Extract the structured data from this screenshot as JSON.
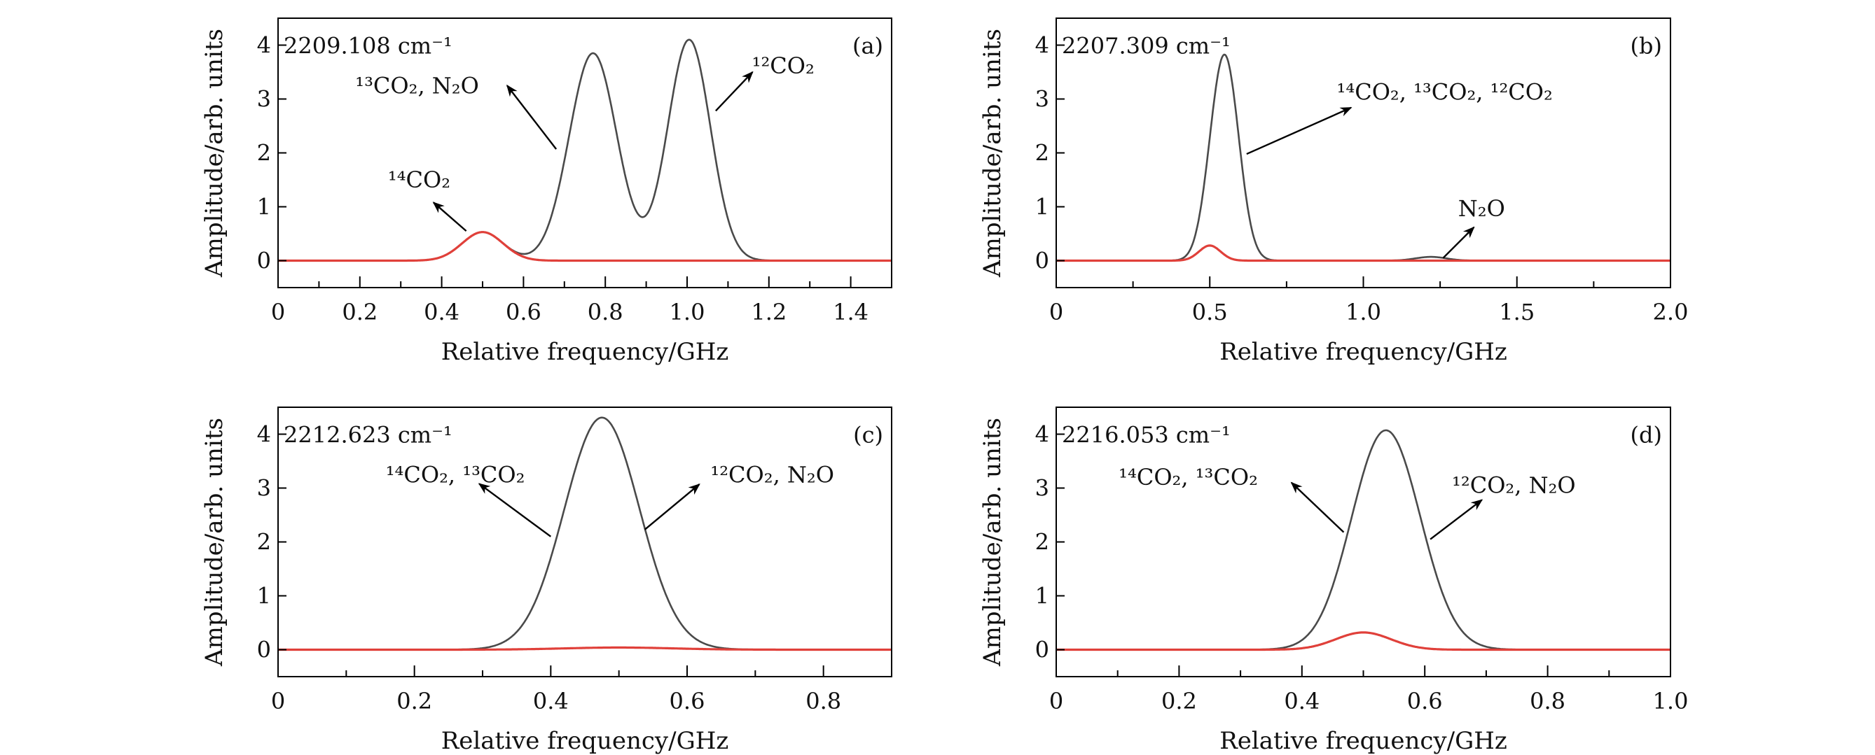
{
  "colors": {
    "total": "#4a4a4a",
    "c14": "#e0403a",
    "axis": "#000000",
    "arrow": "#000000"
  },
  "chart_data": [
    {
      "type": "line",
      "panel": "(a)",
      "wavenumber": "2209.108 cm⁻¹",
      "xlabel": "Relative frequency/GHz",
      "ylabel": "Amplitude/arb. units",
      "xlim": [
        0,
        1.5
      ],
      "ylim": [
        -0.5,
        4.5
      ],
      "xticks": [
        0,
        0.2,
        0.4,
        0.6,
        0.8,
        1.0,
        1.2,
        1.4
      ],
      "xtick_labels": [
        "0",
        "0.2",
        "0.4",
        "0.6",
        "0.8",
        "1.0",
        "1.2",
        "1.4"
      ],
      "xminor_step": 0.1,
      "yticks": [
        0,
        1,
        2,
        3,
        4
      ],
      "ytick_labels": [
        "0",
        "1",
        "2",
        "3",
        "4"
      ],
      "series": [
        {
          "name": "total",
          "color_key": "total",
          "gaussian_peaks": [
            [
              0.5,
              0.53,
              0.05
            ],
            [
              0.77,
              3.85,
              0.058
            ],
            [
              1.005,
              4.1,
              0.052
            ]
          ]
        },
        {
          "name": "14CO2",
          "color_key": "c14",
          "gaussian_peaks": [
            [
              0.5,
              0.53,
              0.05
            ]
          ]
        }
      ],
      "annotations": [
        {
          "text": "¹³CO₂, N₂O",
          "text_at": [
            0.34,
            3.25
          ],
          "arrow_from": [
            0.68,
            2.07
          ],
          "arrow_to": [
            0.56,
            3.25
          ]
        },
        {
          "text": "¹²CO₂",
          "text_at": [
            1.235,
            3.62
          ],
          "arrow_from": [
            1.07,
            2.78
          ],
          "arrow_to": [
            1.16,
            3.5
          ]
        },
        {
          "text": "¹⁴CO₂",
          "text_at": [
            0.345,
            1.5
          ],
          "arrow_from": [
            0.46,
            0.55
          ],
          "arrow_to": [
            0.38,
            1.08
          ]
        }
      ]
    },
    {
      "type": "line",
      "panel": "(b)",
      "wavenumber": "2207.309 cm⁻¹",
      "xlabel": "Relative frequency/GHz",
      "ylabel": "Amplitude/arb. units",
      "xlim": [
        0,
        2.0
      ],
      "ylim": [
        -0.5,
        4.5
      ],
      "xticks": [
        0,
        0.5,
        1.0,
        1.5,
        2.0
      ],
      "xtick_labels": [
        "0",
        "0.5",
        "1.0",
        "1.5",
        "2.0"
      ],
      "xminor_step": 0.25,
      "yticks": [
        0,
        1,
        2,
        3,
        4
      ],
      "ytick_labels": [
        "0",
        "1",
        "2",
        "3",
        "4"
      ],
      "series": [
        {
          "name": "total",
          "color_key": "total",
          "gaussian_peaks": [
            [
              0.5,
              0.28,
              0.035
            ],
            [
              0.55,
              3.72,
              0.045
            ],
            [
              1.22,
              0.07,
              0.05
            ]
          ]
        },
        {
          "name": "14CO2",
          "color_key": "c14",
          "gaussian_peaks": [
            [
              0.5,
              0.28,
              0.035
            ]
          ]
        }
      ],
      "annotations": [
        {
          "text": "¹⁴CO₂, ¹³CO₂, ¹²CO₂",
          "text_at": [
            1.265,
            3.13
          ],
          "arrow_from": [
            0.62,
            1.98
          ],
          "arrow_to": [
            0.96,
            2.84
          ]
        },
        {
          "text": "N₂O",
          "text_at": [
            1.385,
            0.97
          ],
          "arrow_from": [
            1.26,
            0.05
          ],
          "arrow_to": [
            1.36,
            0.62
          ]
        }
      ]
    },
    {
      "type": "line",
      "panel": "(c)",
      "wavenumber": "2212.623 cm⁻¹",
      "xlabel": "Relative frequency/GHz",
      "ylabel": "Amplitude/arb. units",
      "xlim": [
        0,
        0.9
      ],
      "ylim": [
        -0.5,
        4.5
      ],
      "xticks": [
        0,
        0.2,
        0.4,
        0.6,
        0.8
      ],
      "xtick_labels": [
        "0",
        "0.2",
        "0.4",
        "0.6",
        "0.8"
      ],
      "xminor_step": 0.1,
      "yticks": [
        0,
        1,
        2,
        3,
        4
      ],
      "ytick_labels": [
        "0",
        "1",
        "2",
        "3",
        "4"
      ],
      "series": [
        {
          "name": "total",
          "color_key": "total",
          "gaussian_peaks": [
            [
              0.475,
              4.27,
              0.055
            ],
            [
              0.5,
              0.04,
              0.08
            ]
          ]
        },
        {
          "name": "14CO2",
          "color_key": "c14",
          "gaussian_peaks": [
            [
              0.5,
              0.04,
              0.08
            ]
          ]
        }
      ],
      "annotations": [
        {
          "text": "¹⁴CO₂, ¹³CO₂",
          "text_at": [
            0.26,
            3.25
          ],
          "arrow_from": [
            0.4,
            2.1
          ],
          "arrow_to": [
            0.295,
            3.08
          ]
        },
        {
          "text": "¹²CO₂, N₂O",
          "text_at": [
            0.725,
            3.25
          ],
          "arrow_from": [
            0.538,
            2.23
          ],
          "arrow_to": [
            0.618,
            3.07
          ]
        }
      ]
    },
    {
      "type": "line",
      "panel": "(d)",
      "wavenumber": "2216.053 cm⁻¹",
      "xlabel": "Relative frequency/GHz",
      "ylabel": "Amplitude/arb. units",
      "xlim": [
        0,
        1.0
      ],
      "ylim": [
        -0.5,
        4.5
      ],
      "xticks": [
        0,
        0.2,
        0.4,
        0.6,
        0.8,
        1.0
      ],
      "xtick_labels": [
        "0",
        "0.2",
        "0.4",
        "0.6",
        "0.8",
        "1.0"
      ],
      "xminor_step": 0.1,
      "yticks": [
        0,
        1,
        2,
        3,
        4
      ],
      "ytick_labels": [
        "0",
        "1",
        "2",
        "3",
        "4"
      ],
      "series": [
        {
          "name": "total",
          "color_key": "total",
          "gaussian_peaks": [
            [
              0.5,
              0.32,
              0.045
            ],
            [
              0.54,
              3.85,
              0.055
            ]
          ]
        },
        {
          "name": "14CO2",
          "color_key": "c14",
          "gaussian_peaks": [
            [
              0.5,
              0.32,
              0.045
            ]
          ]
        }
      ],
      "annotations": [
        {
          "text": "¹⁴CO₂, ¹³CO₂",
          "text_at": [
            0.215,
            3.2
          ],
          "arrow_from": [
            0.468,
            2.18
          ],
          "arrow_to": [
            0.383,
            3.1
          ]
        },
        {
          "text": "¹²CO₂, N₂O",
          "text_at": [
            0.745,
            3.05
          ],
          "arrow_from": [
            0.609,
            2.05
          ],
          "arrow_to": [
            0.693,
            2.78
          ]
        }
      ]
    }
  ]
}
